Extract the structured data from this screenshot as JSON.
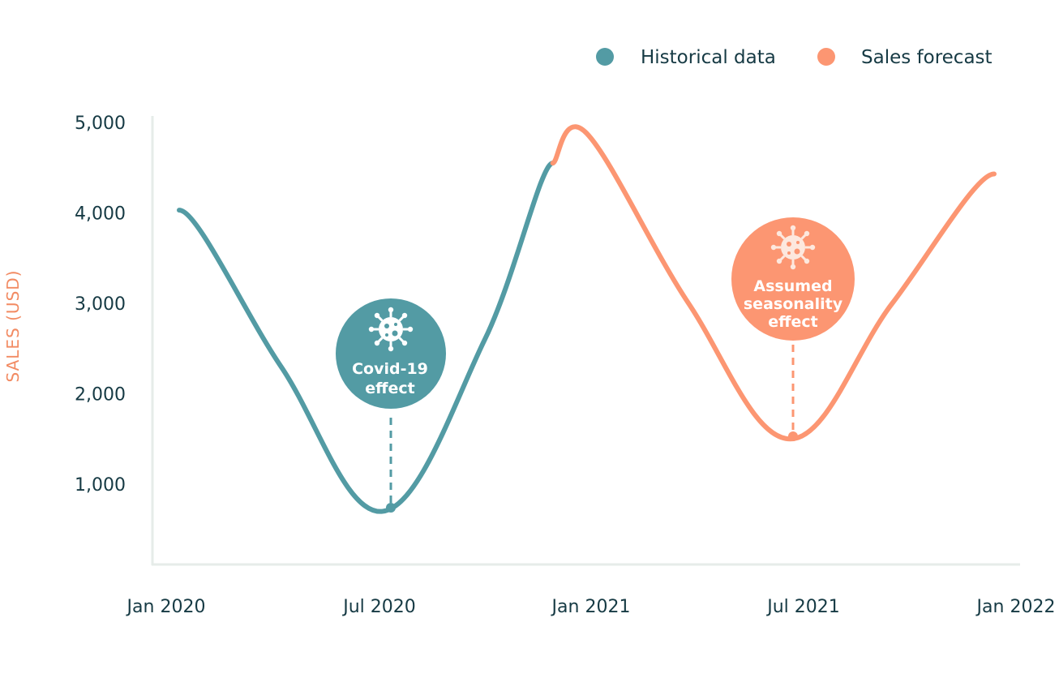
{
  "colors": {
    "historical": "#539ba4",
    "forecast": "#fc9672",
    "axis": "#e6ece9",
    "text": "#163a44",
    "ylabel": "#f28b63"
  },
  "legend": {
    "historical": "Historical data",
    "forecast": "Sales forecast"
  },
  "annotations": {
    "covid": {
      "line1": "Covid-19",
      "line2": "effect",
      "icon": "virus-icon"
    },
    "season": {
      "line1": "Assumed",
      "line2": "seasonality",
      "line3": "effect",
      "icon": "virus-icon"
    }
  },
  "chart_data": {
    "type": "line",
    "ylabel": "SALES (USD)",
    "xlabel": "",
    "ylim": [
      0,
      5000
    ],
    "y_ticks": [
      "1,000",
      "2,000",
      "3,000",
      "4,000",
      "5,000"
    ],
    "x_ticks": [
      "Jan 2020",
      "Jul 2020",
      "Jan 2021",
      "Jul 2021",
      "Jan 2022"
    ],
    "grid": false,
    "legend_position": "top-right",
    "series": [
      {
        "name": "Historical data",
        "x": [
          "2020-01",
          "2020-04",
          "2020-07",
          "2020-10",
          "2020-12"
        ],
        "values": [
          4030,
          2300,
          700,
          2600,
          4550
        ]
      },
      {
        "name": "Sales forecast",
        "x": [
          "2020-12",
          "2021-01",
          "2021-04",
          "2021-07",
          "2021-10",
          "2022-01"
        ],
        "values": [
          4550,
          4880,
          3000,
          1500,
          3000,
          4430
        ]
      }
    ],
    "annotations": [
      {
        "text": "Covid-19 effect",
        "x": "2020-07",
        "y": 700,
        "series": "Historical data"
      },
      {
        "text": "Assumed seasonality effect",
        "x": "2021-07",
        "y": 1500,
        "series": "Sales forecast"
      }
    ]
  }
}
